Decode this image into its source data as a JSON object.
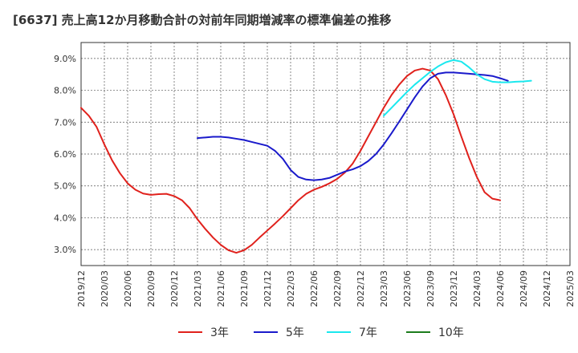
{
  "chart_data": {
    "type": "line",
    "title": "[6637]  売上高12か月移動合計の対前年同期増減率の標準偏差の推移",
    "xlabel": "",
    "ylabel": "",
    "ylim": [
      2.5,
      9.5
    ],
    "y_ticks": [
      3.0,
      4.0,
      5.0,
      6.0,
      7.0,
      8.0,
      9.0
    ],
    "y_tick_labels": [
      "3.0%",
      "4.0%",
      "5.0%",
      "6.0%",
      "7.0%",
      "8.0%",
      "9.0%"
    ],
    "x_tick_labels": [
      "2019/12",
      "2020/03",
      "2020/06",
      "2020/09",
      "2020/12",
      "2021/03",
      "2021/06",
      "2021/09",
      "2021/12",
      "2022/03",
      "2022/06",
      "2022/09",
      "2022/12",
      "2023/03",
      "2023/06",
      "2023/09",
      "2023/12",
      "2024/03",
      "2024/06",
      "2024/09",
      "2024/12",
      "2025/03"
    ],
    "grid": true,
    "legend_position": "bottom",
    "series": [
      {
        "name": "3年",
        "color": "#e0211c",
        "start": "2019/12",
        "values": [
          7.45,
          7.2,
          6.85,
          6.3,
          5.8,
          5.4,
          5.08,
          4.88,
          4.76,
          4.72,
          4.74,
          4.75,
          4.68,
          4.55,
          4.3,
          3.95,
          3.65,
          3.38,
          3.15,
          2.98,
          2.9,
          2.98,
          3.15,
          3.38,
          3.6,
          3.82,
          4.05,
          4.3,
          4.55,
          4.75,
          4.88,
          4.97,
          5.08,
          5.22,
          5.42,
          5.7,
          6.1,
          6.55,
          7.0,
          7.45,
          7.85,
          8.18,
          8.45,
          8.62,
          8.68,
          8.62,
          8.35,
          7.85,
          7.25,
          6.55,
          5.88,
          5.28,
          4.8,
          4.6,
          4.55
        ]
      },
      {
        "name": "5年",
        "color": "#1a1acb",
        "start": "2021/03",
        "values": [
          6.5,
          6.52,
          6.54,
          6.54,
          6.52,
          6.48,
          6.44,
          6.38,
          6.32,
          6.26,
          6.1,
          5.85,
          5.5,
          5.28,
          5.2,
          5.18,
          5.2,
          5.25,
          5.35,
          5.45,
          5.52,
          5.62,
          5.78,
          6.0,
          6.3,
          6.65,
          7.02,
          7.4,
          7.78,
          8.12,
          8.38,
          8.52,
          8.56,
          8.56,
          8.54,
          8.52,
          8.5,
          8.48,
          8.45,
          8.38,
          8.3
        ]
      },
      {
        "name": "7年",
        "color": "#1ae8ee",
        "start": "2023/03",
        "values": [
          7.2,
          7.45,
          7.7,
          7.95,
          8.18,
          8.38,
          8.58,
          8.75,
          8.88,
          8.95,
          8.9,
          8.72,
          8.5,
          8.35,
          8.27,
          8.25,
          8.25,
          8.27,
          8.28,
          8.3
        ]
      },
      {
        "name": "10年",
        "color": "#1c7c1c",
        "start": "",
        "values": []
      }
    ]
  }
}
